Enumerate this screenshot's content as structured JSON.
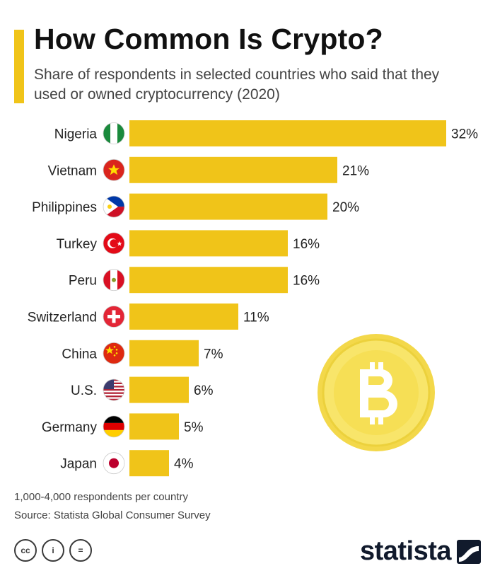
{
  "title": "How Common Is Crypto?",
  "subtitle": "Share of respondents in selected countries who said that they used or owned cryptocurrency (2020)",
  "chart_data": {
    "type": "bar",
    "orientation": "horizontal",
    "categories": [
      "Nigeria",
      "Vietnam",
      "Philippines",
      "Turkey",
      "Peru",
      "Switzerland",
      "China",
      "U.S.",
      "Germany",
      "Japan"
    ],
    "values": [
      32,
      21,
      20,
      16,
      16,
      11,
      7,
      6,
      5,
      4
    ],
    "value_labels": [
      "32%",
      "21%",
      "20%",
      "16%",
      "16%",
      "11%",
      "7%",
      "6%",
      "5%",
      "4%"
    ],
    "unit": "%",
    "bar_color": "#f0c419",
    "grid": false,
    "legend": "none"
  },
  "footer": {
    "note": "1,000-4,000 respondents per country",
    "source": "Source: Statista Global Consumer Survey"
  },
  "license": {
    "cc": "cc",
    "by": "i",
    "nd": "="
  },
  "brand": {
    "name": "statista"
  },
  "bitcoin_symbol": "B"
}
